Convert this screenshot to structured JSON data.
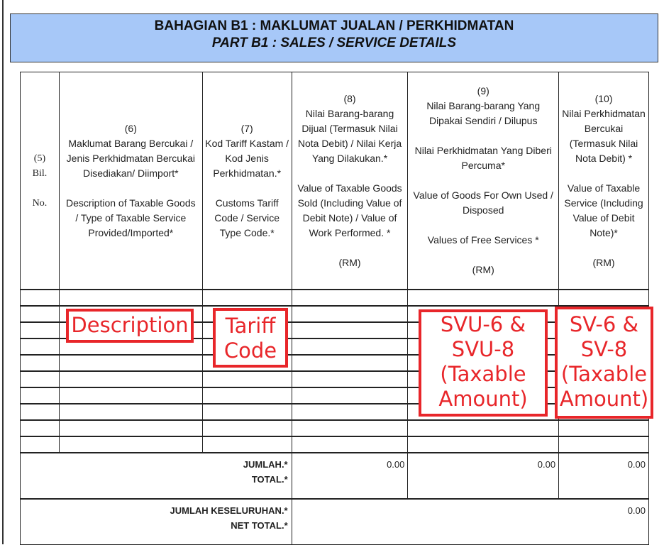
{
  "header": {
    "title_ms": "BAHAGIAN B1 : MAKLUMAT JUALAN / PERKHIDMATAN",
    "title_en": "PART B1 : SALES / SERVICE DETAILS"
  },
  "columns": [
    {
      "num": "(5)",
      "ms": "Bil.",
      "en": "No."
    },
    {
      "num": "(6)",
      "ms": "Maklumat Barang Bercukai / Jenis Perkhidmatan Bercukai Disediakan/ Diimport*",
      "en": "Description of Taxable Goods / Type of Taxable Service Provided/Imported*"
    },
    {
      "num": "(7)",
      "ms": "Kod Tariff Kastam / Kod Jenis Perkhidmatan.*",
      "en": "Customs Tariff Code / Service Type Code.*"
    },
    {
      "num": "(8)",
      "ms": "Nilai Barang-barang Dijual (Termasuk Nilai Nota Debit) / Nilai Kerja Yang Dilakukan.*",
      "en": "Value of Taxable Goods Sold (Including Value of Debit Note) / Value of Work Performed. *",
      "unit": "(RM)"
    },
    {
      "num": "(9)",
      "ms": "Nilai Barang-barang Yang Dipakai Sendiri / Dilupus",
      "ms2": "Nilai Perkhidmatan Yang Diberi Percuma*",
      "en": "Value of Goods For Own Used / Disposed",
      "en2": "Values of Free Services *",
      "unit": "(RM)"
    },
    {
      "num": "(10)",
      "ms": "Nilai Perkhidmatan Bercukai (Termasuk Nilai Nota Debit) *",
      "en": "Value of Taxable Service (Including Value of Debit Note)*",
      "unit": "(RM)"
    }
  ],
  "totals": {
    "label_ms": "JUMLAH.*",
    "label_en": "TOTAL.*",
    "col8": "0.00",
    "col9": "0.00",
    "col10": "0.00"
  },
  "net": {
    "label_ms": "JUMLAH KESELURUHAN.*",
    "label_en": "NET TOTAL.*",
    "value": "0.00"
  },
  "annotations": {
    "color": "#e8262a",
    "description": "Description",
    "tariff": "Tariff Code",
    "svu": "SVU-6 & SVU-8 (Taxable Amount)",
    "sv": "SV-6 & SV-8 (Taxable Amount)"
  }
}
